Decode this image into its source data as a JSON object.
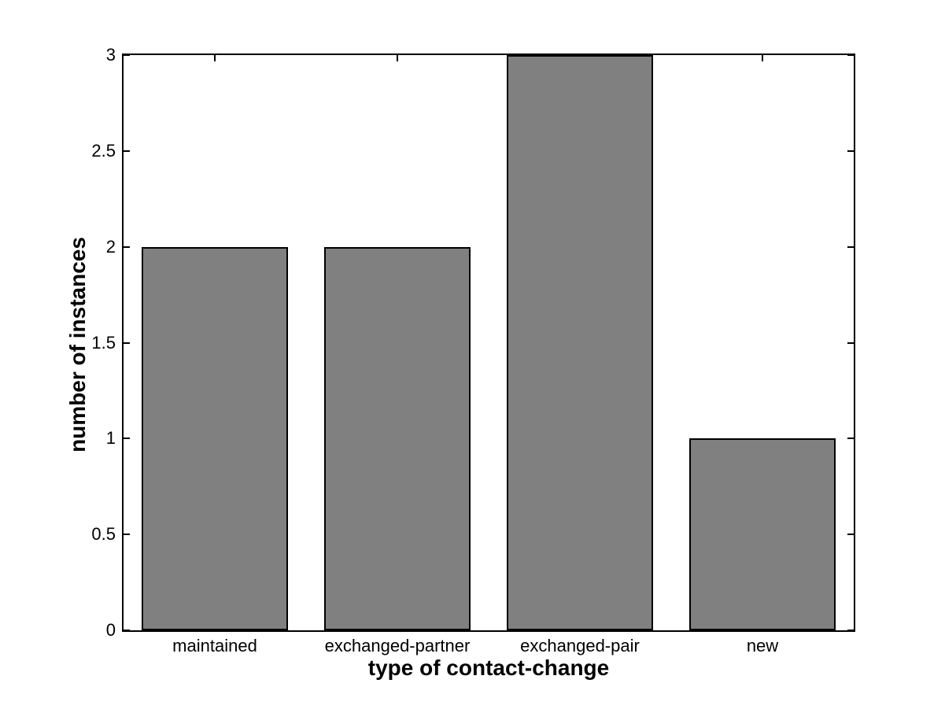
{
  "chart_data": {
    "type": "bar",
    "title": "",
    "xlabel": "type of contact-change",
    "ylabel": "number of instances",
    "categories": [
      "maintained",
      "exchanged-partner",
      "exchanged-pair",
      "new"
    ],
    "values": [
      2,
      2,
      3,
      1
    ],
    "ylim": [
      0,
      3
    ],
    "yticks": [
      0,
      0.5,
      1,
      1.5,
      2,
      2.5,
      3
    ],
    "ytick_labels": [
      "0",
      "0.5",
      "1",
      "1.5",
      "2",
      "2.5",
      "3"
    ],
    "bar_color": "#808080",
    "bar_edge_color": "#000000",
    "axis_color": "#000000",
    "background_color": "#ffffff",
    "bar_width_fraction": 0.8,
    "grid": false,
    "legend": null,
    "tick_direction": "in",
    "box": true
  }
}
